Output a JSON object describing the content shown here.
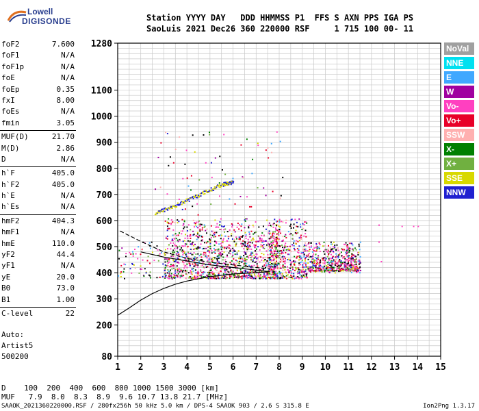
{
  "logo": {
    "line1": "Lowell",
    "line2": "DIGISONDE"
  },
  "header": {
    "line1": "Station YYYY DAY   DDD HHMMSS P1  FFS S AXN PPS IGA PS",
    "line2": "SaoLuis 2021 Dec26 360 220000 RSF     1 715 100 00- 11"
  },
  "params": [
    {
      "label": "foF2",
      "value": "7.600"
    },
    {
      "label": "foF1",
      "value": "N/A"
    },
    {
      "label": "foF1p",
      "value": "N/A"
    },
    {
      "label": "foE",
      "value": "N/A"
    },
    {
      "label": "foEp",
      "value": "0.35"
    },
    {
      "label": "fxI",
      "value": "8.00"
    },
    {
      "label": "foEs",
      "value": "N/A"
    },
    {
      "label": "fmin",
      "value": "3.05"
    },
    {
      "label": "MUF(D)",
      "value": "21.70"
    },
    {
      "label": "M(D)",
      "value": "2.86"
    },
    {
      "label": "D",
      "value": "N/A"
    },
    {
      "label": "h`F",
      "value": "405.0"
    },
    {
      "label": "h`F2",
      "value": "405.0"
    },
    {
      "label": "h`E",
      "value": "N/A"
    },
    {
      "label": "h`Es",
      "value": "N/A"
    },
    {
      "label": "hmF2",
      "value": "404.3"
    },
    {
      "label": "hmF1",
      "value": "N/A"
    },
    {
      "label": "hmE",
      "value": "110.0"
    },
    {
      "label": "yF2",
      "value": "44.4"
    },
    {
      "label": "yF1",
      "value": "N/A"
    },
    {
      "label": "yE",
      "value": "20.0"
    },
    {
      "label": "B0",
      "value": "73.0"
    },
    {
      "label": "B1",
      "value": "1.00"
    },
    {
      "label": "C-level",
      "value": "22"
    }
  ],
  "auto": {
    "line1": "Auto:",
    "line2": "Artist5",
    "line3": "500200"
  },
  "legend": [
    {
      "label": "NoVal",
      "color": "#a0a0a0"
    },
    {
      "label": "NNE",
      "color": "#00e0f0"
    },
    {
      "label": "E",
      "color": "#40a8ff"
    },
    {
      "label": "W",
      "color": "#a000a0"
    },
    {
      "label": "Vo-",
      "color": "#ff40c0"
    },
    {
      "label": "Vo+",
      "color": "#e80028"
    },
    {
      "label": "SSW",
      "color": "#ffb0b0"
    },
    {
      "label": "X-",
      "color": "#008000"
    },
    {
      "label": "X+",
      "color": "#70b040"
    },
    {
      "label": "SSE",
      "color": "#d8d800"
    },
    {
      "label": "NNW",
      "color": "#2020d0"
    }
  ],
  "dtable": {
    "line1": "D    100  200  400  600  800 1000 1500 3000 [km]",
    "line2": "MUF   7.9  8.0  8.3  8.9  9.6 10.7 13.8 21.7 [MHz]"
  },
  "footer": "SAAOK_2021360220000.RSF / 280fx256h 50 kHz 5.0 km / DPS-4 SAAOK 903 / 2.6 S 315.8 E",
  "version": "Ion2Png 1.3.17",
  "chart_data": {
    "type": "scatter",
    "xlim": [
      1,
      15
    ],
    "ylim": [
      80,
      1280
    ],
    "xticks": [
      1,
      2,
      3,
      4,
      5,
      6,
      7,
      8,
      9,
      10,
      11,
      12,
      13,
      14,
      15
    ],
    "yticks": [
      80,
      200,
      300,
      400,
      500,
      600,
      700,
      800,
      900,
      1000,
      1100,
      1280
    ],
    "grid": true,
    "profile_curve": [
      [
        1.0,
        237
      ],
      [
        1.5,
        265
      ],
      [
        2.0,
        295
      ],
      [
        2.5,
        320
      ],
      [
        3.0,
        340
      ],
      [
        3.5,
        356
      ],
      [
        4.0,
        368
      ],
      [
        5.0,
        385
      ],
      [
        6.0,
        395
      ],
      [
        7.0,
        400
      ],
      [
        7.6,
        404
      ]
    ],
    "trace_curve": [
      [
        2.0,
        480
      ],
      [
        3.0,
        460
      ],
      [
        4.0,
        445
      ],
      [
        5.0,
        430
      ],
      [
        6.0,
        420
      ],
      [
        7.0,
        410
      ],
      [
        7.6,
        404
      ]
    ],
    "dashed_curve": [
      [
        1.1,
        560
      ],
      [
        2.0,
        520
      ],
      [
        3.0,
        480
      ],
      [
        4.0,
        455
      ],
      [
        5.0,
        440
      ],
      [
        6.0,
        430
      ],
      [
        7.0,
        420
      ],
      [
        7.6,
        415
      ]
    ],
    "oblique_trace": [
      [
        2.6,
        630
      ],
      [
        3.5,
        660
      ],
      [
        4.5,
        700
      ],
      [
        5.5,
        740
      ],
      [
        6.0,
        750
      ]
    ],
    "clusters": [
      {
        "x0": 3.0,
        "x1": 8.0,
        "y0": 380,
        "y1": 610
      },
      {
        "x0": 7.5,
        "x1": 9.2,
        "y0": 380,
        "y1": 610
      },
      {
        "x0": 9.2,
        "x1": 11.5,
        "y0": 410,
        "y1": 520
      }
    ],
    "isolated_points": [
      [
        12.3,
        585
      ],
      [
        12.3,
        520
      ],
      [
        13.3,
        580
      ],
      [
        13.8,
        580
      ],
      [
        14.0,
        580
      ],
      [
        12.4,
        445
      ]
    ]
  }
}
